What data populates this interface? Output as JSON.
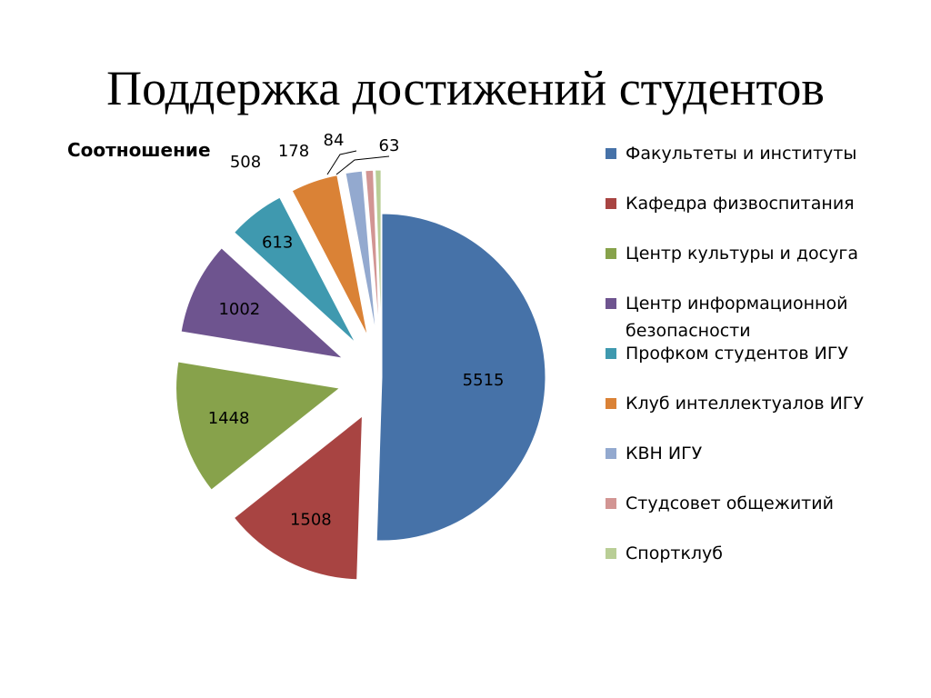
{
  "slide": {
    "title": "Поддержка достижений студентов"
  },
  "chart_data": {
    "type": "pie",
    "title": "Соотношение",
    "legend_position": "right",
    "exploded": true,
    "categories": [
      "Факультеты и институты",
      "Кафедра физвоспитания",
      "Центр культуры и досуга",
      "Центр информационной безопасности",
      "Профком студентов ИГУ",
      "Клуб интеллектуалов ИГУ",
      "КВН ИГУ",
      "Студсовет общежитий",
      "Спортклуб"
    ],
    "values": [
      5515,
      1508,
      1448,
      1002,
      613,
      508,
      178,
      84,
      63
    ],
    "labels": [
      "5515",
      "1508",
      "1448",
      "1002",
      "613",
      "508",
      "178",
      "84",
      "63"
    ],
    "colors": [
      "#4672A8",
      "#A84442",
      "#87A24B",
      "#6E548F",
      "#3F99AF",
      "#DA8236",
      "#93A9CF",
      "#D29593",
      "#B9CE96"
    ]
  }
}
